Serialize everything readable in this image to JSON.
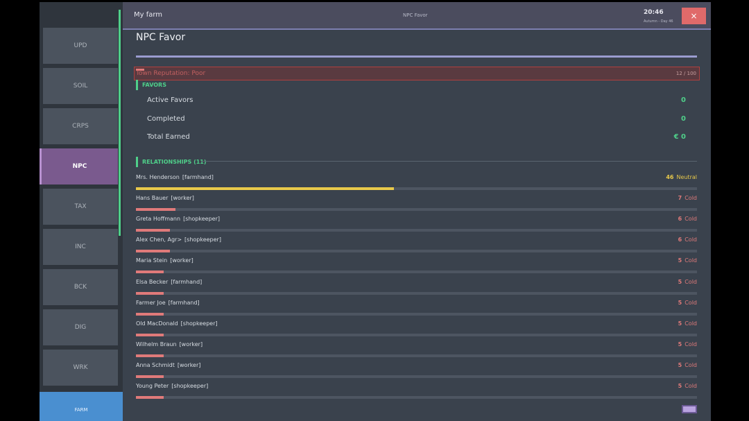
{
  "sidebar": {
    "tabs": [
      "UPD",
      "SOIL",
      "CRPS",
      "NPC",
      "TAX",
      "INC",
      "BCK",
      "DIG",
      "WRK"
    ],
    "active": 3,
    "bottom": "FARM"
  },
  "header": {
    "title": "My farm",
    "page": "NPC Favor",
    "time": "20:46",
    "date": "Autumn - Day 46",
    "close": "×"
  },
  "panel": {
    "title": "NPC Favor"
  },
  "reputation": {
    "label": "Town Reputation: Poor",
    "value": 12,
    "max": 100,
    "score_label": "12 / 100"
  },
  "favors": {
    "heading": "FAVORS",
    "rows": [
      {
        "label": "Active Favors",
        "value": "0"
      },
      {
        "label": "Completed",
        "value": "0"
      },
      {
        "label": "Total Earned",
        "value": "€ 0"
      }
    ]
  },
  "relationships": {
    "heading": "RELATIONSHIPS (11)",
    "items": [
      {
        "name": "Mrs. Henderson",
        "role": "[farmhand]",
        "value": 46,
        "status": "Neutral",
        "color": "#e8c94a"
      },
      {
        "name": "Hans Bauer",
        "role": "[worker]",
        "value": 7,
        "status": "Cold",
        "color": "#e07a7a"
      },
      {
        "name": "Greta Hoffmann",
        "role": "[shopkeeper]",
        "value": 6,
        "status": "Cold",
        "color": "#e07a7a"
      },
      {
        "name": "Alex Chen, Agr>",
        "role": "[shopkeeper]",
        "value": 6,
        "status": "Cold",
        "color": "#e07a7a"
      },
      {
        "name": "Maria Stein",
        "role": "[worker]",
        "value": 5,
        "status": "Cold",
        "color": "#e07a7a"
      },
      {
        "name": "Elsa Becker",
        "role": "[farmhand]",
        "value": 5,
        "status": "Cold",
        "color": "#e07a7a"
      },
      {
        "name": "Farmer Joe",
        "role": "[farmhand]",
        "value": 5,
        "status": "Cold",
        "color": "#e07a7a"
      },
      {
        "name": "Old MacDonald",
        "role": "[shopkeeper]",
        "value": 5,
        "status": "Cold",
        "color": "#e07a7a"
      },
      {
        "name": "Wilhelm Braun",
        "role": "[worker]",
        "value": 5,
        "status": "Cold",
        "color": "#e07a7a"
      },
      {
        "name": "Anna Schmidt",
        "role": "[worker]",
        "value": 5,
        "status": "Cold",
        "color": "#e07a7a"
      },
      {
        "name": "Young Peter",
        "role": "[shopkeeper]",
        "value": 5,
        "status": "Cold",
        "color": "#e07a7a"
      }
    ]
  }
}
